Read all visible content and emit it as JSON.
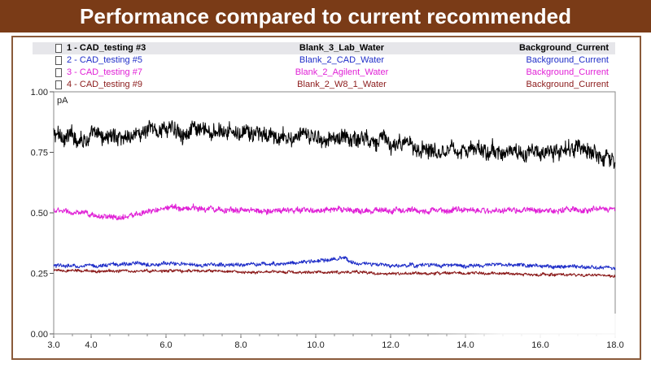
{
  "title": "Performance compared to current recommended",
  "chart_data": {
    "type": "line",
    "ylabel": "pA",
    "xlim": [
      3.0,
      18.0
    ],
    "ylim": [
      0.0,
      1.0
    ],
    "x_ticks": [
      "3.0",
      "4.0",
      "6.0",
      "8.0",
      "10.0",
      "12.0",
      "14.0",
      "16.0",
      "18.0"
    ],
    "y_ticks": [
      "0.00",
      "0.25",
      "0.50",
      "0.75",
      "1.00"
    ],
    "grid": false,
    "legend_placement": "top",
    "series": [
      {
        "name": "1 - CAD_testing #3",
        "sample": "Blank_3_Lab_Water",
        "method": "Background_Current",
        "color": "#000000",
        "selected": true,
        "noise": 0.035,
        "x": [
          3.0,
          4.0,
          5.0,
          6.0,
          7.0,
          8.0,
          9.0,
          10.0,
          11.0,
          11.8,
          12.0,
          13.0,
          14.0,
          15.0,
          16.0,
          17.0,
          17.8,
          18.0
        ],
        "y": [
          0.82,
          0.81,
          0.82,
          0.85,
          0.83,
          0.83,
          0.81,
          0.81,
          0.81,
          0.81,
          0.78,
          0.77,
          0.76,
          0.75,
          0.75,
          0.76,
          0.74,
          0.7
        ]
      },
      {
        "name": "2 - CAD_testing #5",
        "sample": "Blank_2_CAD_Water",
        "method": "Background_Current",
        "color": "#1f2ec8",
        "selected": false,
        "noise": 0.008,
        "x": [
          3.0,
          4.0,
          5.0,
          6.0,
          7.0,
          8.0,
          9.0,
          10.0,
          10.7,
          11.0,
          12.0,
          13.0,
          14.0,
          15.0,
          16.0,
          17.0,
          18.0
        ],
        "y": [
          0.28,
          0.28,
          0.29,
          0.29,
          0.285,
          0.285,
          0.29,
          0.3,
          0.31,
          0.295,
          0.28,
          0.285,
          0.28,
          0.285,
          0.28,
          0.28,
          0.27
        ]
      },
      {
        "name": "3 - CAD_testing #7",
        "sample": "Blank_2_Agilent_Water",
        "method": "Background_Current",
        "color": "#e020d6",
        "selected": false,
        "noise": 0.012,
        "x": [
          3.0,
          4.0,
          4.8,
          5.5,
          6.0,
          7.0,
          8.0,
          9.0,
          10.0,
          11.0,
          12.0,
          13.0,
          14.0,
          15.0,
          16.0,
          17.0,
          18.0
        ],
        "y": [
          0.51,
          0.49,
          0.48,
          0.5,
          0.52,
          0.52,
          0.51,
          0.51,
          0.51,
          0.51,
          0.51,
          0.51,
          0.51,
          0.51,
          0.51,
          0.51,
          0.52
        ]
      },
      {
        "name": "4 - CAD_testing #9",
        "sample": "Blank_2_W8_1_Water",
        "method": "Background_Current",
        "color": "#8b1a1a",
        "selected": false,
        "noise": 0.006,
        "x": [
          3.0,
          4.0,
          5.0,
          6.0,
          7.0,
          8.0,
          9.0,
          10.0,
          11.0,
          12.0,
          13.0,
          14.0,
          15.0,
          16.0,
          17.0,
          18.0
        ],
        "y": [
          0.26,
          0.26,
          0.26,
          0.26,
          0.26,
          0.255,
          0.255,
          0.255,
          0.255,
          0.25,
          0.25,
          0.25,
          0.25,
          0.245,
          0.245,
          0.24
        ]
      }
    ]
  }
}
